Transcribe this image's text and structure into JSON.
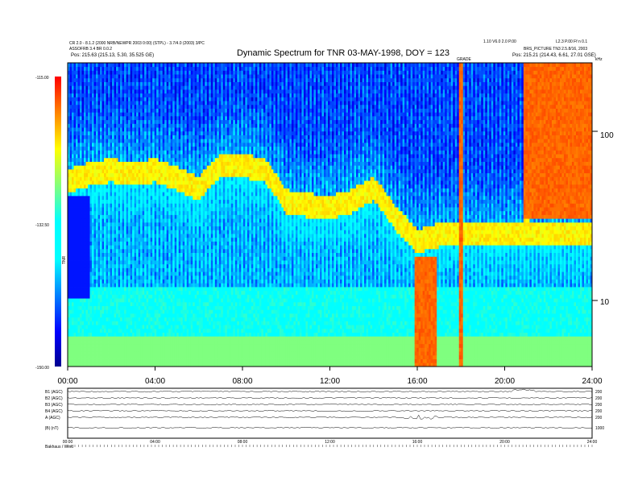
{
  "header": {
    "title": "Dynamic Spectrum for TNR 03-MAY-1998, DOY = 123",
    "left_line1": "CR 2.0 - 8.1.2 (2000 NRB/NEWPR 2003 0:00) (STPL) - 3.7/4.0 (2003) 3/PC",
    "left_line2": "ASSOFRB 3.4 BR 0.0.2",
    "left_pos": "Pos: 215.63 (215.13, 5.30, 35.525 GE)",
    "right_top_a": "1.10 V6.0 2.0 P.00",
    "right_top_b": "L2.3 P.00 Ff n 0.1",
    "right_line2": "BRS_PICTURE TN3 2.5.8/16, 2003",
    "right_pos": "Pos: 215.21 (214.43, 6.61, 27.01 GSE)",
    "center_tag": "GRADE",
    "khz_unit": "kHz"
  },
  "colorbar": {
    "label": "TNR",
    "tick_labels": [
      "-115.00",
      "-132.50",
      "-150.00"
    ]
  },
  "spectrogram": {
    "x_tick_labels": [
      "00:00",
      "04:00",
      "08:00",
      "12:00",
      "16:00",
      "20:00",
      "24:00"
    ],
    "y_tick_labels": [
      "100",
      "10"
    ]
  },
  "strip_panels": {
    "labels": [
      "B1 (AGC)",
      "B2 (AGC)",
      "B3 (AGC)",
      "B4 (AGC)",
      "A (AGC)",
      "|B| (nT)"
    ],
    "right_ticks": [
      "200",
      "200",
      "200",
      "200",
      "200",
      "1000"
    ],
    "x_tick_labels": [
      "00:00",
      "04:00",
      "08:00",
      "12:00",
      "16:00",
      "20:00",
      "24:00"
    ],
    "footer_left": "Bakhaus / Wind"
  },
  "chart_data": {
    "type": "heatmap",
    "title": "Dynamic Spectrum for TNR 03-MAY-1998, DOY = 123",
    "x": {
      "unit": "hours UT",
      "range": [
        0,
        24
      ],
      "ticks": [
        "00:00",
        "04:00",
        "08:00",
        "12:00",
        "16:00",
        "20:00",
        "24:00"
      ]
    },
    "y": {
      "unit": "kHz",
      "scale": "log",
      "range": [
        4,
        250
      ],
      "ticks": [
        10,
        100
      ]
    },
    "colorbar": {
      "label": "TNR",
      "range": [
        -150,
        -115
      ],
      "ticks": [
        -115.0,
        -132.5,
        -150.0
      ],
      "colormap": "rainbow (blue low, red high)"
    },
    "features": {
      "plasma_line_khz": [
        {
          "t": 0,
          "f": 50
        },
        {
          "t": 1,
          "f": 55
        },
        {
          "t": 2,
          "f": 58
        },
        {
          "t": 3,
          "f": 55
        },
        {
          "t": 4,
          "f": 58
        },
        {
          "t": 5,
          "f": 52
        },
        {
          "t": 6,
          "f": 45
        },
        {
          "t": 7,
          "f": 62
        },
        {
          "t": 8,
          "f": 62
        },
        {
          "t": 9,
          "f": 58
        },
        {
          "t": 10,
          "f": 38
        },
        {
          "t": 11,
          "f": 36
        },
        {
          "t": 12,
          "f": 35
        },
        {
          "t": 13,
          "f": 38
        },
        {
          "t": 14,
          "f": 45
        },
        {
          "t": 15,
          "f": 30
        },
        {
          "t": 16,
          "f": 22
        },
        {
          "t": 17,
          "f": 24
        },
        {
          "t": 18,
          "f": 25
        },
        {
          "t": 19,
          "f": 24
        },
        {
          "t": 20,
          "f": 24
        },
        {
          "t": 21,
          "f": 25
        },
        {
          "t": 22,
          "f": 24
        },
        {
          "t": 23,
          "f": 24
        },
        {
          "t": 24,
          "f": 24
        }
      ],
      "bursts": [
        {
          "t_start": 15.9,
          "t_end": 16.9,
          "f_min": 4,
          "f_max": 18,
          "level": "high"
        },
        {
          "t_start": 17.9,
          "t_end": 18.1,
          "f_min": 4,
          "f_max": 250,
          "level": "high"
        },
        {
          "t_start": 20.9,
          "t_end": 24.0,
          "f_min": 30,
          "f_max": 250,
          "level": "high"
        }
      ]
    }
  }
}
